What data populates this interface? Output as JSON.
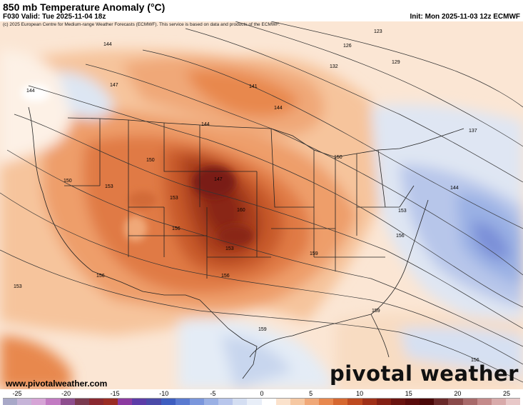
{
  "header": {
    "title": "850 mb Temperature Anomaly (°C)",
    "valid": "F030 Valid: Tue 2025-11-04 18z",
    "init": "Init: Mon 2025-11-03 12z ECMWF",
    "credit": "(c) 2025 European Centre for Medium-range Weather Forecasts (ECMWF). This service is based on data and products of the ECMWF."
  },
  "footer": {
    "site": "www.pivotalweather.com",
    "brand": "pivotal weather"
  },
  "contour_labels": [
    "123",
    "126",
    "129",
    "132",
    "137",
    "141",
    "144",
    "147",
    "150",
    "153",
    "156",
    "159",
    "160"
  ],
  "colorbar": {
    "ticks": [
      "-25",
      "-20",
      "-15",
      "-10",
      "-5",
      "0",
      "5",
      "10",
      "15",
      "20",
      "25"
    ],
    "colors": [
      "#a8a8c8",
      "#c6b4d8",
      "#d6a4d6",
      "#c27ac2",
      "#8e4e8e",
      "#7a3a50",
      "#8a2830",
      "#9a2c24",
      "#8c3aa0",
      "#5c3ca8",
      "#4a4aa8",
      "#3e5ec0",
      "#5a7ad0",
      "#7a96dc",
      "#9ab0e4",
      "#b8c6ec",
      "#d4def2",
      "#e8eef8",
      "#ffffff",
      "#fbe2cc",
      "#f6c8a2",
      "#f0a878",
      "#e8884e",
      "#d66830",
      "#be4a20",
      "#a03018",
      "#842014",
      "#6a1410",
      "#5a0c0c",
      "#4a0808",
      "#6a2a2a",
      "#8a4a4a",
      "#a86a6a",
      "#c48a8a",
      "#d8aaaa",
      "#e8c8c8"
    ]
  }
}
